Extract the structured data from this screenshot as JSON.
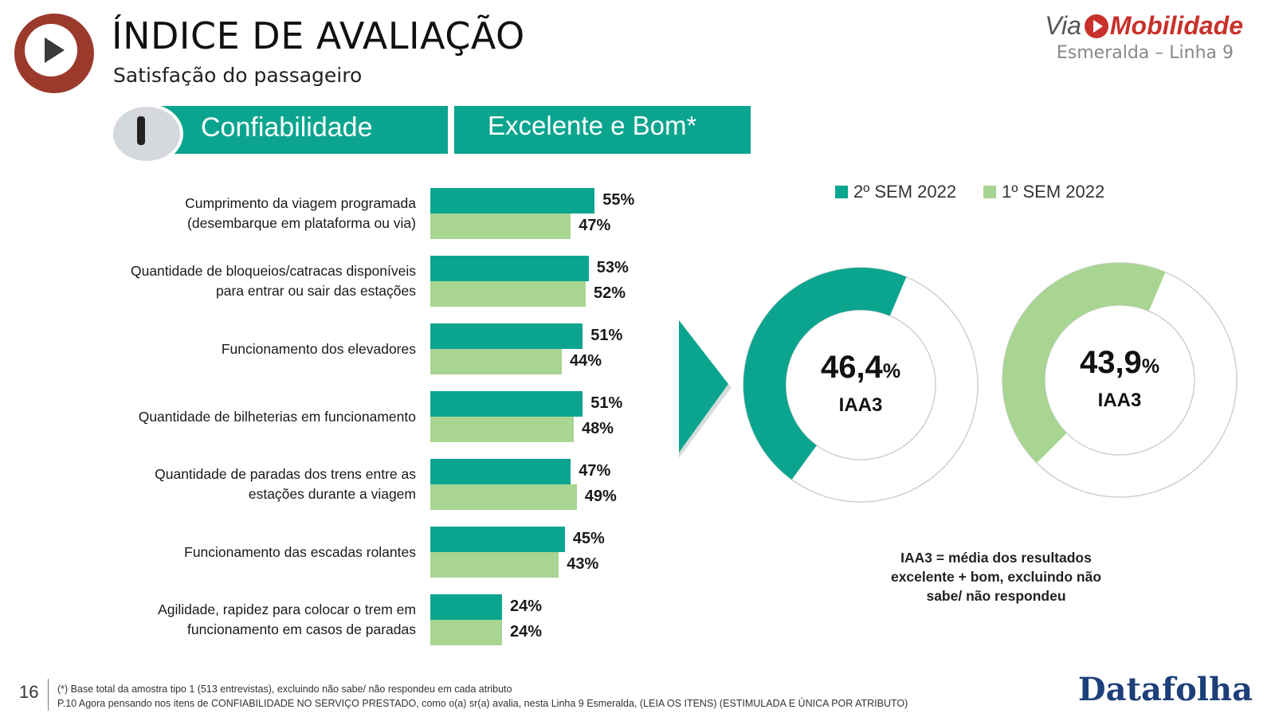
{
  "header": {
    "title": "ÍNDICE DE AVALIAÇÃO",
    "subtitle": "Satisfação do passageiro",
    "brand_via": "Via",
    "brand_name": "Mobilidade",
    "line_name": "Esmeralda – Linha 9"
  },
  "banners": {
    "category": "Confiabilidade",
    "measure": "Excelente e Bom*"
  },
  "colors": {
    "teal": "#0ba58f",
    "light_green": "#a8d591",
    "logo_red": "#9b3a2c",
    "brand_red": "#c8312b",
    "datafolha_blue": "#1d3f7a"
  },
  "chart_data": [
    {
      "type": "bar",
      "orientation": "horizontal",
      "categories": [
        [
          "Cumprimento da viagem programada",
          "(desembarque em plataforma ou via)"
        ],
        [
          "Quantidade de bloqueios/catracas disponíveis",
          "para entrar ou sair das estações"
        ],
        [
          "Funcionamento dos elevadores"
        ],
        [
          "Quantidade de bilheterias em funcionamento"
        ],
        [
          "Quantidade de paradas dos trens entre as",
          "estações durante a viagem"
        ],
        [
          "Funcionamento das escadas rolantes"
        ],
        [
          "Agilidade, rapidez para colocar o trem em",
          "funcionamento em casos de paradas"
        ]
      ],
      "series": [
        {
          "name": "2º SEM 2022",
          "color": "#0ba58f",
          "values": [
            55,
            53,
            51,
            51,
            47,
            45,
            24
          ]
        },
        {
          "name": "1º SEM 2022",
          "color": "#a8d591",
          "values": [
            47,
            52,
            44,
            48,
            49,
            43,
            24
          ]
        }
      ],
      "value_suffix": "%",
      "legend_position": "top"
    },
    {
      "type": "pie",
      "variant": "donut",
      "series": [
        {
          "name": "2º SEM 2022",
          "color": "#0ba58f",
          "value": 46.4,
          "display": "46,4",
          "label": "IAA3"
        },
        {
          "name": "1º SEM 2022",
          "color": "#a8d591",
          "value": 43.9,
          "display": "43,9",
          "label": "IAA3"
        }
      ],
      "value_suffix": "%"
    }
  ],
  "iaa_note": [
    "IAA3 = média dos resultados",
    "excelente + bom, excluindo não",
    "sabe/ não respondeu"
  ],
  "footer": {
    "page_number": "16",
    "note1": "(*) Base total da amostra tipo 1 (513 entrevistas), excluindo não sabe/ não respondeu em cada atributo",
    "note2": "P.10 Agora pensando nos itens de CONFIABILIDADE NO SERVIÇO PRESTADO, como o(a) sr(a) avalia, nesta Linha 9 Esmeralda, (LEIA OS ITENS) (ESTIMULADA E ÚNICA POR ATRIBUTO)",
    "source": "Datafolha"
  }
}
